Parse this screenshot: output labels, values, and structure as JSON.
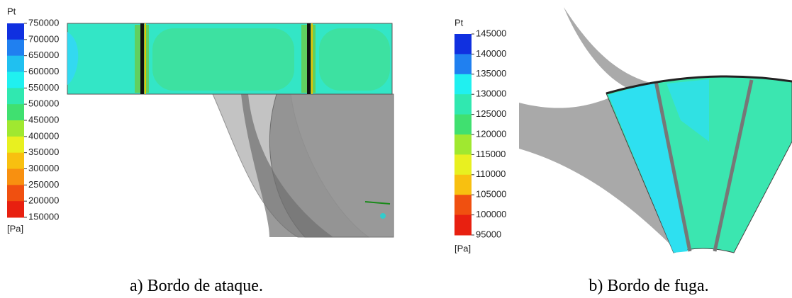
{
  "panels": [
    {
      "colorbar": {
        "title": "Pt",
        "labels": [
          750000,
          700000,
          650000,
          600000,
          550000,
          500000,
          450000,
          400000,
          350000,
          300000,
          250000,
          200000,
          150000
        ],
        "unit": "[Pa]"
      },
      "caption": "a) Bordo de ataque."
    },
    {
      "colorbar": {
        "title": "Pt",
        "labels": [
          145000,
          140000,
          135000,
          130000,
          125000,
          120000,
          115000,
          110000,
          105000,
          100000,
          95000
        ],
        "unit": "[Pa]"
      },
      "caption": "b) Bordo de fuga."
    }
  ]
}
